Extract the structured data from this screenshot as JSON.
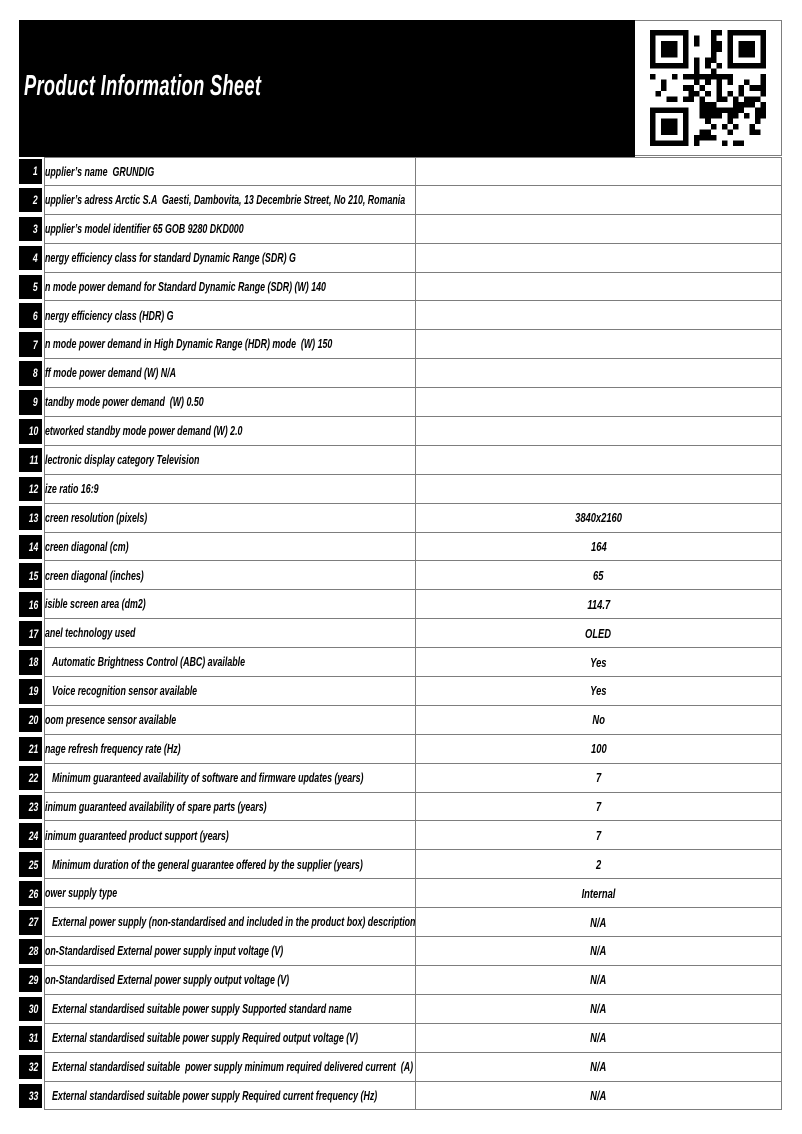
{
  "colors": {
    "header_bg": "#000000",
    "title_text": "#ffffff",
    "row_number_bg": "#000000",
    "row_number_text": "#ffffff",
    "cell_border": "#7d7d7d"
  },
  "header": {
    "title": "Product Information Sheet",
    "qr_icon": "qr-code-icon"
  },
  "table": {
    "rows": [
      {
        "num": "1",
        "label": "upplier’s name  GRUNDIG",
        "value": "",
        "indent": false
      },
      {
        "num": "2",
        "label": "upplier’s adress Arctic S.A  Gaesti, Dambovita, 13 Decembrie Street, No 210, Romania",
        "value": "",
        "indent": false
      },
      {
        "num": "3",
        "label": "upplier’s model identifier 65 GOB 9280 DKD000",
        "value": "",
        "indent": false
      },
      {
        "num": "4",
        "label": "nergy efficiency class for standard Dynamic Range (SDR) G",
        "value": "",
        "indent": false
      },
      {
        "num": "5",
        "label": "n mode power demand for Standard Dynamic Range (SDR) (W) 140",
        "value": "",
        "indent": false
      },
      {
        "num": "6",
        "label": "nergy efficiency class (HDR) G",
        "value": "",
        "indent": false
      },
      {
        "num": "7",
        "label": "n mode power demand in High Dynamic Range (HDR) mode  (W) 150",
        "value": "",
        "indent": false
      },
      {
        "num": "8",
        "label": "ff mode power demand (W) N/A",
        "value": "",
        "indent": false
      },
      {
        "num": "9",
        "label": "tandby mode power demand  (W) 0.50",
        "value": "",
        "indent": false
      },
      {
        "num": "10",
        "label": "etworked standby mode power demand (W) 2.0",
        "value": "",
        "indent": false
      },
      {
        "num": "11",
        "label": "lectronic display category Television",
        "value": "",
        "indent": false
      },
      {
        "num": "12",
        "label": "ize ratio 16:9",
        "value": "",
        "indent": false
      },
      {
        "num": "13",
        "label": "creen resolution (pixels)",
        "value": "3840x2160",
        "indent": false
      },
      {
        "num": "14",
        "label": "creen diagonal (cm)",
        "value": "164",
        "indent": false
      },
      {
        "num": "15",
        "label": "creen diagonal (inches)",
        "value": "65",
        "indent": false
      },
      {
        "num": "16",
        "label": "isible screen area (dm2)",
        "value": "114.7",
        "indent": false
      },
      {
        "num": "17",
        "label": "anel technology used",
        "value": "OLED",
        "indent": false
      },
      {
        "num": "18",
        "label": "Automatic Brightness Control (ABC) available",
        "value": "Yes",
        "indent": true
      },
      {
        "num": "19",
        "label": "Voice recognition sensor available",
        "value": "Yes",
        "indent": true
      },
      {
        "num": "20",
        "label": "oom presence sensor available",
        "value": "No",
        "indent": false
      },
      {
        "num": "21",
        "label": "nage refresh frequency rate (Hz)",
        "value": "100",
        "indent": false
      },
      {
        "num": "22",
        "label": "Minimum guaranteed availability of software and firmware updates (years)",
        "value": "7",
        "indent": true
      },
      {
        "num": "23",
        "label": "inimum guaranteed availability of spare parts (years)",
        "value": "7",
        "indent": false
      },
      {
        "num": "24",
        "label": "inimum guaranteed product support (years)",
        "value": "7",
        "indent": false
      },
      {
        "num": "25",
        "label": "Minimum duration of the general guarantee offered by the supplier (years)",
        "value": "2",
        "indent": true
      },
      {
        "num": "26",
        "label": "ower supply type",
        "value": "Internal",
        "indent": false
      },
      {
        "num": "27",
        "label": "External power supply (non-standardised and included in the product box) description",
        "value": "N/A",
        "indent": true
      },
      {
        "num": "28",
        "label": "on-Standardised External power supply input voltage (V)",
        "value": "N/A",
        "indent": false
      },
      {
        "num": "29",
        "label": "on-Standardised External power supply output voltage (V)",
        "value": "N/A",
        "indent": false
      },
      {
        "num": "30",
        "label": "External standardised suitable power supply Supported standard name",
        "value": "N/A",
        "indent": true
      },
      {
        "num": "31",
        "label": "External standardised suitable power supply Required output voltage (V)",
        "value": "N/A",
        "indent": true
      },
      {
        "num": "32",
        "label": "External standardised suitable  power supply minimum required delivered current  (A)",
        "value": "N/A",
        "indent": true
      },
      {
        "num": "33",
        "label": "External standardised suitable power supply Required current frequency (Hz)",
        "value": "N/A",
        "indent": true
      }
    ]
  }
}
